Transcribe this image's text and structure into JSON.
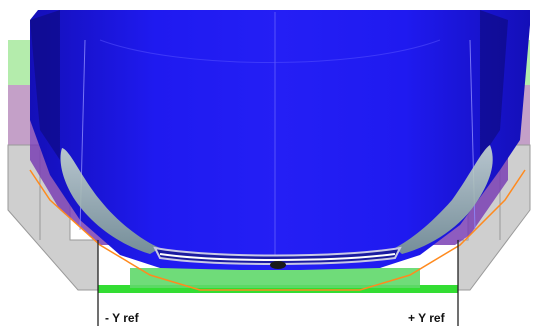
{
  "labels": {
    "neg_ref": "- Y ref",
    "pos_ref": "+ Y ref"
  },
  "colors": {
    "body_blue": "#1a14e6",
    "frame_purple": "#7b3fb0",
    "side_green": "#a8e8a0",
    "base_green": "#33dd33",
    "outline_orange": "#ff8a1e",
    "grey_block": "#c8c8c8"
  }
}
